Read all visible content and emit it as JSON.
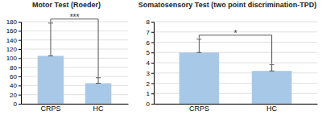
{
  "chart_data": [
    {
      "type": "bar",
      "title": "Motor Test (Roeder)",
      "categories": [
        "CRPS",
        "HC"
      ],
      "values": [
        105,
        45
      ],
      "errors_upper": [
        72,
        12
      ],
      "errors_lower": [
        0,
        0
      ],
      "annotation": "***",
      "color": "#a8c8e8",
      "ylim": [
        0,
        180
      ],
      "yticks": [
        0,
        20,
        40,
        60,
        80,
        100,
        120,
        140,
        160,
        180
      ],
      "grid": true
    },
    {
      "type": "bar",
      "title": "Somatosensory Test (two point discrimination-TPD)",
      "categories": [
        "CRPS",
        "HC"
      ],
      "values": [
        5.0,
        3.2
      ],
      "errors_upper": [
        1.3,
        0.6
      ],
      "errors_lower": [
        0,
        0
      ],
      "annotation": "*",
      "color": "#a8c8e8",
      "ylim": [
        0,
        8
      ],
      "yticks": [
        0,
        1,
        2,
        3,
        4,
        5,
        6,
        7,
        8
      ],
      "grid": true
    }
  ]
}
